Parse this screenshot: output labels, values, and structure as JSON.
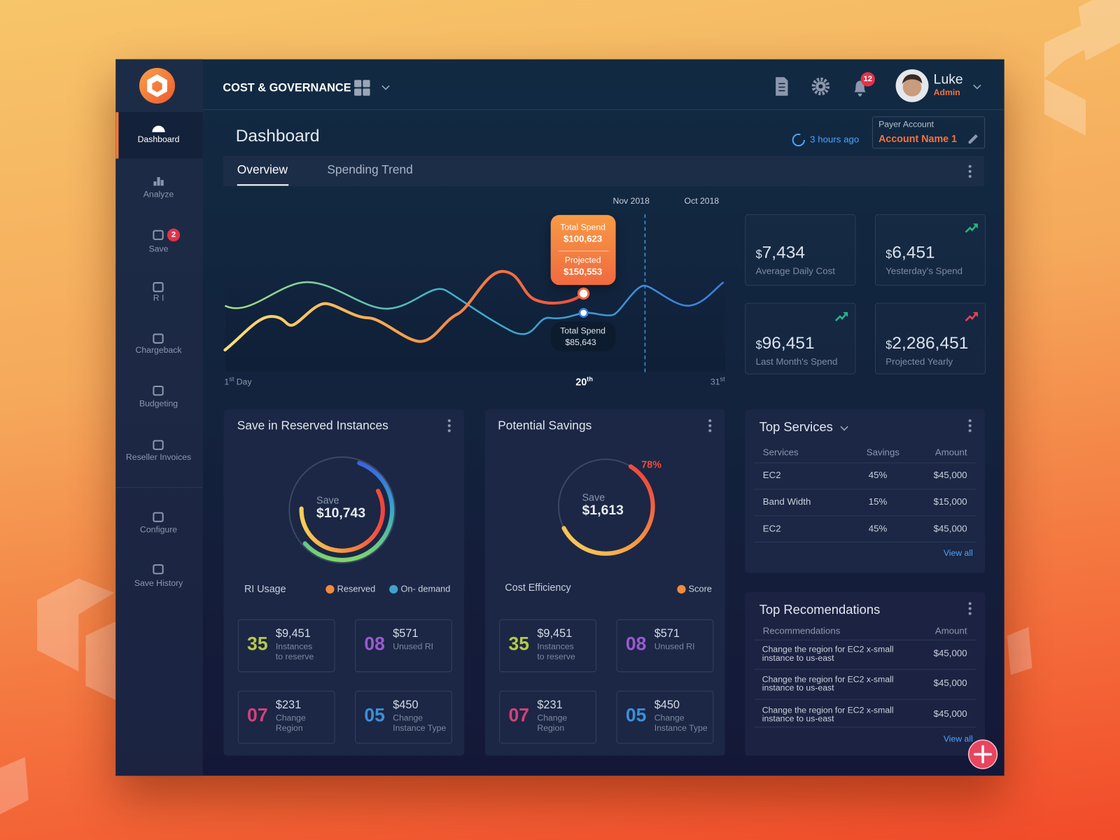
{
  "header": {
    "title": "COST & GOVERNANCE",
    "user_name": "Luke",
    "user_role": "Admin",
    "notifications": "12"
  },
  "sidebar": {
    "items": [
      {
        "label": "Dashboard"
      },
      {
        "label": "Analyze"
      },
      {
        "label": "Save",
        "badge": "2"
      },
      {
        "label": "R I"
      },
      {
        "label": "Chargeback"
      },
      {
        "label": "Budgeting"
      },
      {
        "label": "Reseller Invoices"
      },
      {
        "label": "Configure"
      },
      {
        "label": "Save History"
      }
    ]
  },
  "page": {
    "title": "Dashboard",
    "updated": "3 hours ago",
    "payer_label": "Payer Account",
    "payer_name": "Account Name 1"
  },
  "tabs": [
    "Overview",
    "Spending Trend"
  ],
  "trend": {
    "legend": [
      "Nov 2018",
      "Oct 2018"
    ],
    "x_labels": [
      {
        "num": "1",
        "sup": "st",
        "text": "Day"
      },
      {
        "num": "20",
        "sup": "th"
      },
      {
        "num": "31",
        "sup": "st"
      }
    ],
    "tooltip": {
      "label": "Total Spend",
      "value": "$100,623",
      "projected_label": "Projected",
      "projected_value": "$150,553"
    },
    "tooltip_previous": {
      "label": "Total Spend",
      "value": "$85,643"
    }
  },
  "stats": [
    {
      "currency": "$",
      "value": "7,434",
      "label": "Average Daily Cost"
    },
    {
      "currency": "$",
      "value": "6,451",
      "label": "Yesterday's Spend"
    },
    {
      "currency": "$",
      "value": "96,451",
      "label": "Last Month's Spend"
    },
    {
      "currency": "$",
      "value": "2,286,451",
      "label": "Projected Yearly"
    }
  ],
  "ri": {
    "title": "Save in Reserved Instances",
    "center_label": "Save",
    "center_value": "$10,743",
    "legend_title": "RI Usage",
    "legend": [
      "Reserved",
      "On- demand"
    ],
    "tiles": [
      {
        "count": "35",
        "amount": "$9,451",
        "desc": "Instances to reserve"
      },
      {
        "count": "08",
        "amount": "$571",
        "desc": "Unused RI"
      },
      {
        "count": "07",
        "amount": "$231",
        "desc": "Change Region"
      },
      {
        "count": "05",
        "amount": "$450",
        "desc": "Change Instance Type"
      }
    ]
  },
  "savings": {
    "title": "Potential Savings",
    "score": {
      "value": 78,
      "label": "78%"
    },
    "center_label": "Save",
    "center_value": "$1,613",
    "legend_title": "Cost Efficiency",
    "legend": [
      "Score"
    ],
    "tiles": [
      {
        "count": "35",
        "amount": "$9,451",
        "desc": "Instances to reserve"
      },
      {
        "count": "08",
        "amount": "$571",
        "desc": "Unused RI"
      },
      {
        "count": "07",
        "amount": "$231",
        "desc": "Change Region"
      },
      {
        "count": "05",
        "amount": "$450",
        "desc": "Change Instance Type"
      }
    ]
  },
  "top_services": {
    "title": "Top Services",
    "columns": [
      "Services",
      "Savings",
      "Amount"
    ],
    "rows": [
      [
        "EC2",
        "45%",
        "$45,000"
      ],
      [
        "Band Width",
        "15%",
        "$15,000"
      ],
      [
        "EC2",
        "45%",
        "$45,000"
      ]
    ],
    "view_all": "View all"
  },
  "recommendations": {
    "title": "Top Recomendations",
    "columns": [
      "Recommendations",
      "Amount"
    ],
    "rows": [
      [
        "Change the region for EC2 x-small instance to us-east",
        "$45,000"
      ],
      [
        "Change the region for EC2 x-small instance to us-east",
        "$45,000"
      ],
      [
        "Change the region for EC2 x-small instance to us-east",
        "$45,000"
      ]
    ],
    "view_all": "View all"
  }
}
